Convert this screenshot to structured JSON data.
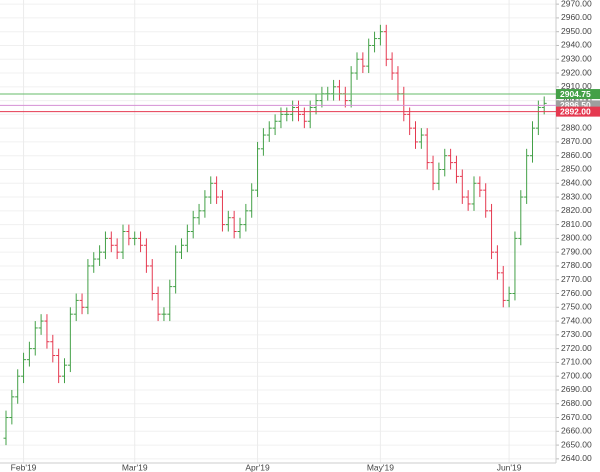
{
  "chart_data": {
    "type": "ohlc",
    "up_color": "#43a047",
    "down_color": "#e53950",
    "grid": true,
    "ylim": [
      2637,
      2973
    ],
    "yticks": [
      {
        "value": 2640,
        "label": "2640.00"
      },
      {
        "value": 2650,
        "label": "2650.00"
      },
      {
        "value": 2660,
        "label": "2660.00"
      },
      {
        "value": 2670,
        "label": "2670.00"
      },
      {
        "value": 2680,
        "label": "2680.00"
      },
      {
        "value": 2690,
        "label": "2690.00"
      },
      {
        "value": 2700,
        "label": "2700.00"
      },
      {
        "value": 2710,
        "label": "2710.00"
      },
      {
        "value": 2720,
        "label": "2720.00"
      },
      {
        "value": 2730,
        "label": "2730.00"
      },
      {
        "value": 2740,
        "label": "2740.00"
      },
      {
        "value": 2750,
        "label": "2750.00"
      },
      {
        "value": 2760,
        "label": "2760.00"
      },
      {
        "value": 2770,
        "label": "2770.00"
      },
      {
        "value": 2780,
        "label": "2780.00"
      },
      {
        "value": 2790,
        "label": "2790.00"
      },
      {
        "value": 2800,
        "label": "2800.00"
      },
      {
        "value": 2810,
        "label": "2810.00"
      },
      {
        "value": 2820,
        "label": "2820.00"
      },
      {
        "value": 2830,
        "label": "2830.00"
      },
      {
        "value": 2840,
        "label": "2840.00"
      },
      {
        "value": 2850,
        "label": "2850.00"
      },
      {
        "value": 2860,
        "label": "2860.00"
      },
      {
        "value": 2870,
        "label": "2870.00"
      },
      {
        "value": 2880,
        "label": "2880.00"
      },
      {
        "value": 2890,
        "label": "2890.00"
      },
      {
        "value": 2900,
        "label": "2900.00"
      },
      {
        "value": 2910,
        "label": "2910.00"
      },
      {
        "value": 2920,
        "label": "2920.00"
      },
      {
        "value": 2930,
        "label": "2930.00"
      },
      {
        "value": 2940,
        "label": "2940.00"
      },
      {
        "value": 2950,
        "label": "2950.00"
      },
      {
        "value": 2960,
        "label": "2960.00"
      },
      {
        "value": 2970,
        "label": "2970.00"
      }
    ],
    "levels": [
      {
        "value": 2904.75,
        "label": "2904.75",
        "color": "#66bb6a",
        "label_color": "#43a047"
      },
      {
        "value": 2896.5,
        "label": "2896.50",
        "color": "#d58fd5",
        "label_color": "#9e9e9e"
      },
      {
        "value": 2892,
        "label": "2892.00",
        "color": "#e53950",
        "label_color": "#e53950"
      }
    ],
    "categories": [
      null,
      null,
      null,
      "Feb'19",
      null,
      null,
      null,
      null,
      null,
      null,
      null,
      null,
      null,
      null,
      null,
      null,
      null,
      null,
      null,
      null,
      null,
      null,
      "Mar'19",
      null,
      null,
      null,
      null,
      null,
      null,
      null,
      null,
      null,
      null,
      null,
      null,
      null,
      null,
      null,
      null,
      null,
      null,
      null,
      null,
      "Apr'19",
      null,
      null,
      null,
      null,
      null,
      null,
      null,
      null,
      null,
      null,
      null,
      null,
      null,
      null,
      null,
      null,
      null,
      null,
      null,
      null,
      "May'19",
      null,
      null,
      null,
      null,
      null,
      null,
      null,
      null,
      null,
      null,
      null,
      null,
      null,
      null,
      null,
      null,
      null,
      null,
      null,
      null,
      null,
      "Jun'19",
      null,
      null,
      null,
      null,
      null,
      null
    ],
    "open": [
      2655,
      2670,
      2685,
      2700,
      2712,
      2720,
      2735,
      2740,
      2725,
      2715,
      2700,
      2708,
      2745,
      2755,
      2750,
      2780,
      2785,
      2790,
      2800,
      2795,
      2790,
      2805,
      2800,
      2800,
      2795,
      2780,
      2760,
      2745,
      2745,
      2765,
      2790,
      2795,
      2805,
      2815,
      2820,
      2830,
      2840,
      2830,
      2810,
      2815,
      2805,
      2810,
      2820,
      2835,
      2865,
      2875,
      2880,
      2885,
      2890,
      2890,
      2895,
      2890,
      2885,
      2895,
      2900,
      2905,
      2905,
      2910,
      2905,
      2900,
      2920,
      2930,
      2925,
      2940,
      2945,
      2950,
      2930,
      2920,
      2905,
      2890,
      2880,
      2870,
      2875,
      2855,
      2840,
      2850,
      2860,
      2855,
      2845,
      2830,
      2825,
      2840,
      2835,
      2820,
      2790,
      2775,
      2755,
      2760,
      2800,
      2830,
      2860,
      2880,
      2895
    ],
    "high": [
      2675,
      2690,
      2705,
      2717,
      2725,
      2740,
      2745,
      2745,
      2730,
      2720,
      2713,
      2750,
      2760,
      2760,
      2785,
      2790,
      2795,
      2805,
      2805,
      2800,
      2810,
      2810,
      2805,
      2805,
      2800,
      2785,
      2765,
      2750,
      2770,
      2795,
      2800,
      2810,
      2820,
      2825,
      2835,
      2845,
      2845,
      2835,
      2820,
      2820,
      2815,
      2825,
      2840,
      2870,
      2880,
      2885,
      2890,
      2895,
      2895,
      2900,
      2900,
      2895,
      2900,
      2905,
      2910,
      2910,
      2915,
      2915,
      2910,
      2925,
      2935,
      2935,
      2945,
      2950,
      2955,
      2955,
      2935,
      2925,
      2910,
      2895,
      2885,
      2880,
      2880,
      2860,
      2855,
      2865,
      2865,
      2860,
      2850,
      2835,
      2845,
      2845,
      2840,
      2825,
      2795,
      2780,
      2765,
      2805,
      2835,
      2865,
      2885,
      2900,
      2903
    ],
    "low": [
      2650,
      2665,
      2680,
      2695,
      2707,
      2715,
      2730,
      2720,
      2710,
      2695,
      2695,
      2703,
      2740,
      2745,
      2745,
      2775,
      2780,
      2785,
      2790,
      2785,
      2785,
      2795,
      2795,
      2790,
      2775,
      2755,
      2740,
      2740,
      2740,
      2760,
      2785,
      2790,
      2800,
      2810,
      2815,
      2825,
      2825,
      2805,
      2805,
      2800,
      2800,
      2805,
      2815,
      2830,
      2860,
      2870,
      2875,
      2880,
      2885,
      2885,
      2885,
      2880,
      2880,
      2890,
      2895,
      2900,
      2900,
      2900,
      2895,
      2895,
      2915,
      2920,
      2920,
      2935,
      2940,
      2925,
      2915,
      2900,
      2885,
      2875,
      2865,
      2865,
      2850,
      2835,
      2835,
      2845,
      2850,
      2840,
      2825,
      2820,
      2820,
      2830,
      2815,
      2785,
      2770,
      2750,
      2750,
      2755,
      2795,
      2825,
      2855,
      2875,
      2890
    ],
    "close": [
      2670,
      2685,
      2700,
      2712,
      2720,
      2735,
      2740,
      2725,
      2715,
      2700,
      2708,
      2745,
      2755,
      2750,
      2780,
      2785,
      2790,
      2800,
      2795,
      2790,
      2805,
      2800,
      2800,
      2795,
      2780,
      2760,
      2745,
      2745,
      2765,
      2790,
      2795,
      2805,
      2815,
      2820,
      2830,
      2840,
      2830,
      2810,
      2815,
      2805,
      2810,
      2820,
      2835,
      2865,
      2875,
      2880,
      2885,
      2890,
      2890,
      2895,
      2890,
      2885,
      2895,
      2900,
      2905,
      2905,
      2910,
      2905,
      2900,
      2920,
      2930,
      2925,
      2940,
      2945,
      2950,
      2930,
      2920,
      2905,
      2890,
      2880,
      2870,
      2875,
      2855,
      2840,
      2850,
      2860,
      2855,
      2845,
      2830,
      2825,
      2840,
      2835,
      2820,
      2790,
      2775,
      2755,
      2760,
      2800,
      2830,
      2860,
      2880,
      2895,
      2898
    ]
  }
}
